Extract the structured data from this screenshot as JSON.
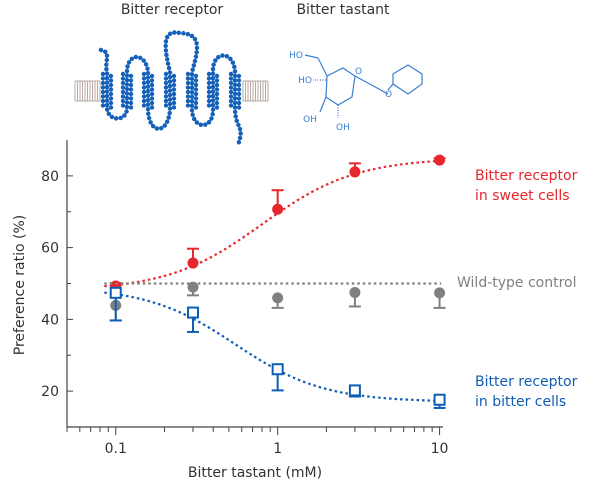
{
  "header": {
    "receptor_label": "Bitter receptor",
    "tastant_label": "Bitter tastant",
    "molecule_groups": [
      "HO",
      "HO",
      "OH",
      "OH",
      "O",
      "O"
    ]
  },
  "chart_data": {
    "type": "scatter",
    "xlabel": "Bitter tastant (mM)",
    "ylabel": "Preference ratio (%)",
    "xscale": "log",
    "xlim": [
      0.05,
      10.5
    ],
    "ylim": [
      10,
      90
    ],
    "xticks": [
      0.1,
      1,
      10
    ],
    "xtick_labels": [
      "0.1",
      "1",
      "10"
    ],
    "yticks": [
      20,
      40,
      60,
      80
    ],
    "ytick_labels": [
      "20",
      "40",
      "60",
      "80"
    ],
    "grid": false,
    "x": [
      0.1,
      0.3,
      1,
      3,
      10
    ],
    "series": [
      {
        "name": "Bitter receptor in sweet cells",
        "label_lines": [
          "Bitter receptor",
          "in sweet cells"
        ],
        "color": "#e8262d",
        "marker": "filled-circle",
        "error_dir": "up",
        "values": [
          49.3,
          55.7,
          70.7,
          81.1,
          84.4
        ],
        "error": [
          0.8,
          4.0,
          5.3,
          2.4,
          0.5
        ],
        "fit": {
          "bottom": 48,
          "top": 85,
          "ec50": 0.8,
          "hill": 1.5
        }
      },
      {
        "name": "Wild-type control",
        "label_lines": [
          "Wild-type control"
        ],
        "color": "#808080",
        "marker": "filled-circle",
        "error_dir": "down",
        "values": [
          43.9,
          49.0,
          46.0,
          47.5,
          47.4
        ],
        "error": [
          4.2,
          2.3,
          2.8,
          3.9,
          4.2
        ],
        "fit": {
          "constant": 50
        }
      },
      {
        "name": "Bitter receptor in bitter cells",
        "label_lines": [
          "Bitter receptor",
          "in bitter cells"
        ],
        "color": "#0f5db5",
        "marker": "open-square",
        "error_dir": "down",
        "values": [
          47.4,
          41.9,
          26.1,
          20.2,
          17.6
        ],
        "error": [
          7.7,
          5.4,
          5.9,
          1.7,
          2.3
        ],
        "fit": {
          "bottom": 17,
          "top": 49,
          "ec50": 0.55,
          "hill": 1.6
        }
      }
    ]
  }
}
